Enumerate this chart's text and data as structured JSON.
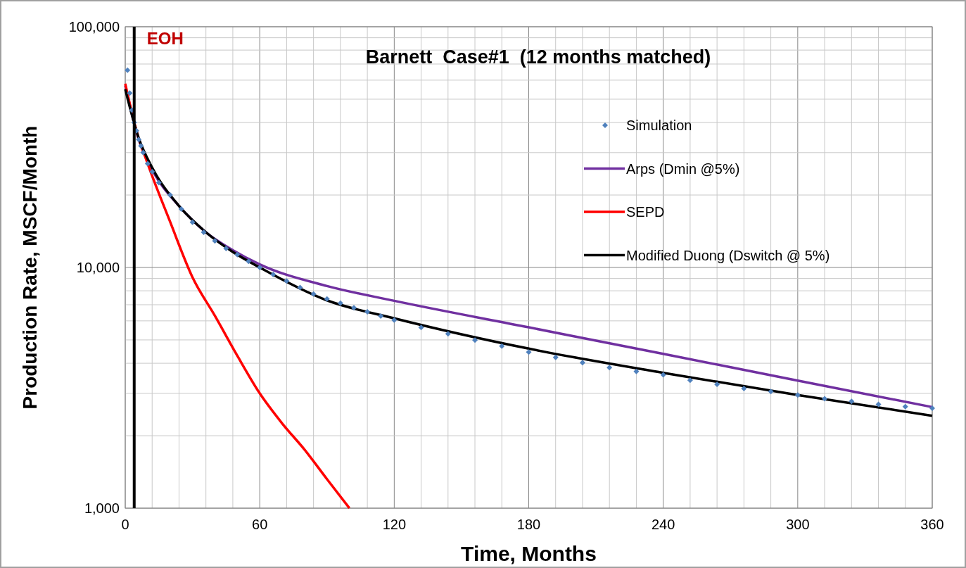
{
  "chart_data": {
    "type": "line",
    "title": "Barnett  Case#1  (12 months matched)",
    "xlabel": "Time, Months",
    "ylabel": "Production Rate, MSCF/Month",
    "xlim": [
      0,
      360
    ],
    "xticks": [
      0,
      60,
      120,
      180,
      240,
      300,
      360
    ],
    "ylim": [
      1000,
      100000
    ],
    "yticks": [
      {
        "value": 1000,
        "label": "1,000"
      },
      {
        "value": 10000,
        "label": "10,000"
      },
      {
        "value": 100000,
        "label": "100,000"
      }
    ],
    "log": "y",
    "grid": true,
    "legend": "right",
    "ref_lines": [
      {
        "axis": "x",
        "value": 4,
        "label": "EOH",
        "color": "#000000"
      }
    ],
    "series": [
      {
        "name": "Simulation",
        "type": "scatter",
        "marker": "diamond",
        "color": "#4f81bd",
        "x": [
          1,
          2,
          3,
          4,
          5,
          6,
          7,
          8,
          10,
          12,
          15,
          20,
          25,
          30,
          35,
          40,
          45,
          50,
          55,
          60,
          66,
          72,
          78,
          84,
          90,
          96,
          102,
          108,
          114,
          120,
          132,
          144,
          156,
          168,
          180,
          192,
          204,
          216,
          228,
          240,
          252,
          264,
          276,
          288,
          300,
          312,
          324,
          336,
          348,
          360
        ],
        "values": [
          66000,
          53000,
          45000,
          40000,
          37000,
          34000,
          32000,
          30000,
          27000,
          25000,
          22500,
          20000,
          17500,
          15400,
          14000,
          12900,
          12000,
          11300,
          10600,
          10000,
          9350,
          8780,
          8250,
          7750,
          7400,
          7100,
          6800,
          6540,
          6280,
          6050,
          5630,
          5300,
          4990,
          4710,
          4450,
          4230,
          4020,
          3840,
          3700,
          3580,
          3400,
          3270,
          3140,
          3050,
          2950,
          2850,
          2780,
          2700,
          2640,
          2600
        ]
      },
      {
        "name": "Arps (Dmin @5%)",
        "color": "#7030a0",
        "x": [
          0,
          6,
          12,
          24,
          36,
          48,
          60,
          90,
          120,
          180,
          240,
          300,
          360
        ],
        "values": [
          57000,
          34000,
          25500,
          18000,
          14000,
          11800,
          10300,
          8370,
          7270,
          5640,
          4375,
          3390,
          2630
        ]
      },
      {
        "name": "SEPD",
        "color": "#ff0000",
        "x": [
          0,
          5,
          10,
          20,
          30,
          40,
          50,
          60,
          70,
          80,
          90,
          100
        ],
        "values": [
          58000,
          37000,
          27000,
          15500,
          9100,
          6300,
          4300,
          3000,
          2250,
          1750,
          1320,
          1000
        ]
      },
      {
        "name": "Modified Duong (Dswitch @ 5%)",
        "color": "#000000",
        "x": [
          0,
          6,
          12,
          24,
          36,
          48,
          60,
          90,
          120,
          180,
          240,
          300,
          360
        ],
        "values": [
          55000,
          34500,
          26000,
          18000,
          14000,
          11600,
          10000,
          7300,
          6150,
          4600,
          3650,
          2950,
          2420
        ]
      }
    ]
  }
}
